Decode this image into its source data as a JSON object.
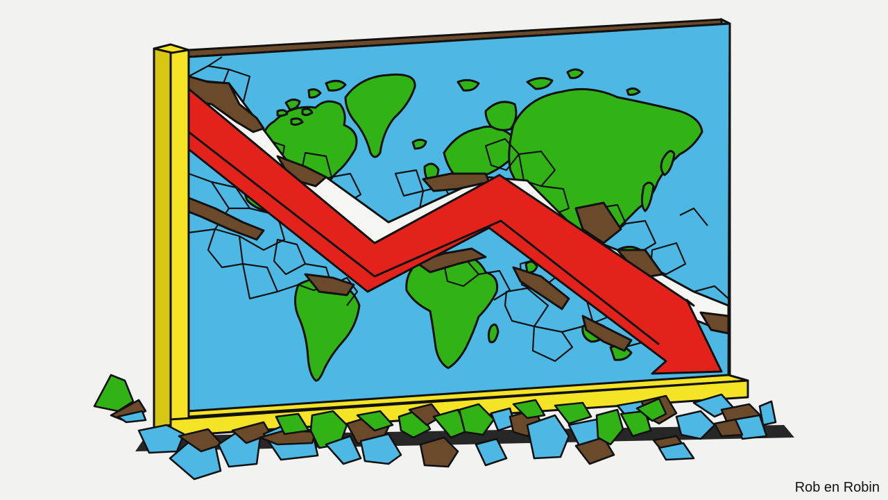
{
  "illustration": {
    "credit": "Rob en Robin",
    "colors": {
      "background": "#f2f2f0",
      "ocean": "#4db8e4",
      "land": "#31b315",
      "frame": "#f5e425",
      "frame_edge": "#d9c614",
      "earth": "#6b4a2b",
      "arrow": "#e3231b",
      "outline": "#111111",
      "crack_light": "#f5f5f2"
    }
  }
}
